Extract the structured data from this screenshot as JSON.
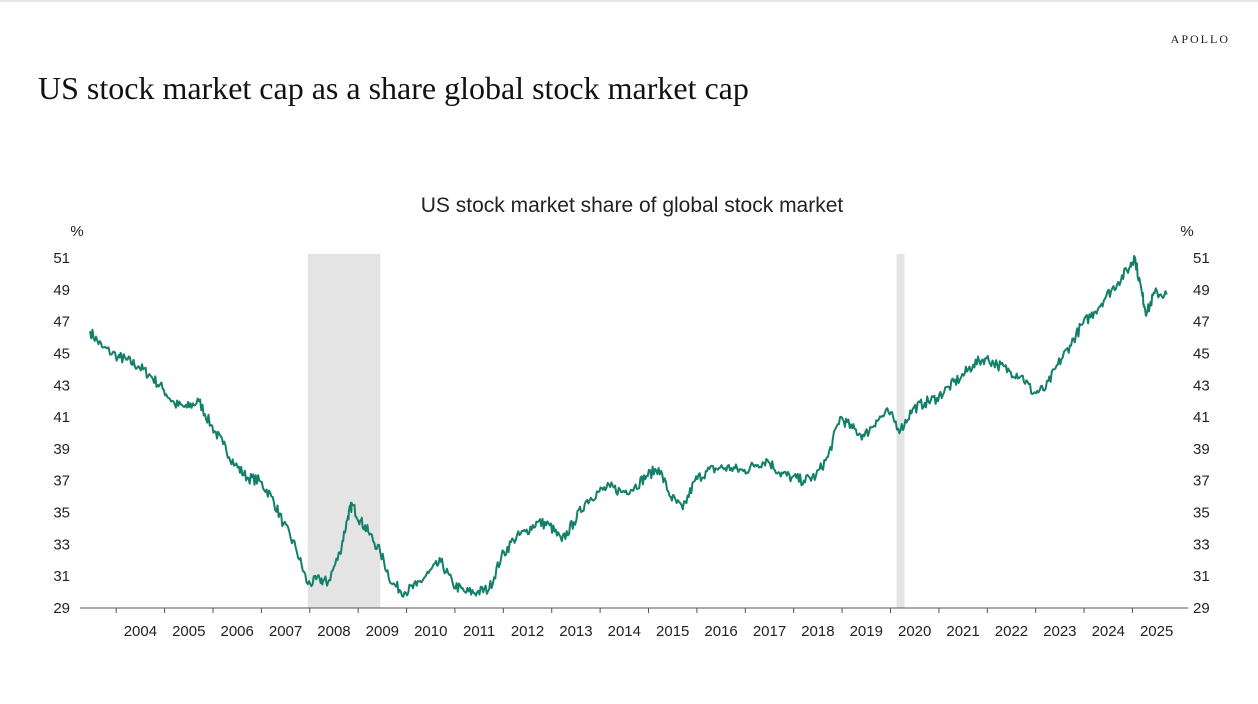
{
  "header": {
    "brand": "APOLLO",
    "title": "US stock market cap as a share global stock market cap"
  },
  "colors": {
    "line": "#14806a",
    "shade": "#e3e4e3",
    "axis": "#555555"
  },
  "chart_data": {
    "type": "line",
    "title": "US stock market share of global stock market",
    "y_unit_left": "%",
    "y_unit_right": "%",
    "ylim": [
      29,
      51
    ],
    "xlim": [
      2003.5,
      2025.9
    ],
    "y_ticks": [
      29,
      31,
      33,
      35,
      37,
      39,
      41,
      43,
      45,
      47,
      49,
      51
    ],
    "x_ticks": [
      "2004",
      "2005",
      "2006",
      "2007",
      "2008",
      "2009",
      "2010",
      "2011",
      "2012",
      "2013",
      "2014",
      "2015",
      "2016",
      "2017",
      "2018",
      "2019",
      "2020",
      "2021",
      "2022",
      "2023",
      "2024",
      "2025"
    ],
    "legend": "none",
    "grid": false,
    "shaded_periods": [
      {
        "start": "2007-12",
        "end": "2009-06"
      },
      {
        "start": "2020-02",
        "end": "2020-04"
      }
    ],
    "series": [
      {
        "x": [
          "2003-06",
          "2003-09",
          "2004-01",
          "2004-03",
          "2004-06",
          "2004-09",
          "2004-12",
          "2005-03",
          "2005-06",
          "2005-09",
          "2005-12",
          "2006-03",
          "2006-06",
          "2006-09",
          "2006-12",
          "2007-03",
          "2007-06",
          "2007-09",
          "2007-12",
          "2008-03",
          "2008-05",
          "2008-08",
          "2008-10",
          "2008-11",
          "2009-01",
          "2009-03",
          "2009-06",
          "2009-09",
          "2009-12",
          "2010-03",
          "2010-06",
          "2010-09",
          "2010-12",
          "2011-03",
          "2011-06",
          "2011-09",
          "2011-12",
          "2012-03",
          "2012-06",
          "2012-09",
          "2012-12",
          "2013-03",
          "2013-06",
          "2013-09",
          "2013-12",
          "2014-03",
          "2014-06",
          "2014-09",
          "2014-12",
          "2015-03",
          "2015-06",
          "2015-09",
          "2015-12",
          "2016-03",
          "2016-06",
          "2016-09",
          "2016-12",
          "2017-03",
          "2017-06",
          "2017-09",
          "2017-12",
          "2018-03",
          "2018-06",
          "2018-09",
          "2018-12",
          "2019-03",
          "2019-06",
          "2019-09",
          "2019-12",
          "2020-03",
          "2020-06",
          "2020-09",
          "2020-12",
          "2021-03",
          "2021-06",
          "2021-09",
          "2021-12",
          "2022-03",
          "2022-06",
          "2022-09",
          "2022-12",
          "2023-03",
          "2023-06",
          "2023-09",
          "2023-12",
          "2024-03",
          "2024-06",
          "2024-09",
          "2024-12",
          "2025-01",
          "2025-03",
          "2025-04",
          "2025-06",
          "2025-09"
        ],
        "values": [
          46.4,
          45.4,
          44.8,
          44.6,
          44.2,
          43.6,
          42.8,
          41.8,
          41.6,
          42.0,
          40.5,
          39.3,
          38.0,
          37.2,
          37.0,
          36.0,
          34.3,
          32.8,
          30.5,
          30.8,
          30.6,
          32.5,
          34.8,
          35.5,
          34.5,
          33.8,
          32.5,
          30.5,
          30.0,
          30.4,
          31.2,
          31.9,
          30.5,
          30.0,
          30.0,
          30.2,
          32.2,
          33.3,
          33.8,
          34.4,
          34.2,
          33.2,
          34.4,
          35.7,
          36.3,
          36.6,
          36.3,
          36.6,
          37.3,
          37.8,
          36.0,
          35.2,
          37.0,
          37.6,
          37.8,
          37.8,
          37.6,
          38.0,
          38.3,
          37.5,
          37.2,
          37.0,
          37.3,
          38.5,
          41.0,
          40.3,
          39.8,
          40.8,
          41.3,
          40.2,
          41.5,
          41.9,
          42.2,
          42.9,
          43.5,
          44.3,
          44.7,
          44.3,
          43.9,
          43.6,
          42.5,
          42.8,
          44.3,
          45.5,
          46.8,
          47.6,
          48.6,
          49.5,
          50.5,
          51.1,
          48.6,
          47.5,
          48.8,
          48.7
        ]
      }
    ]
  }
}
